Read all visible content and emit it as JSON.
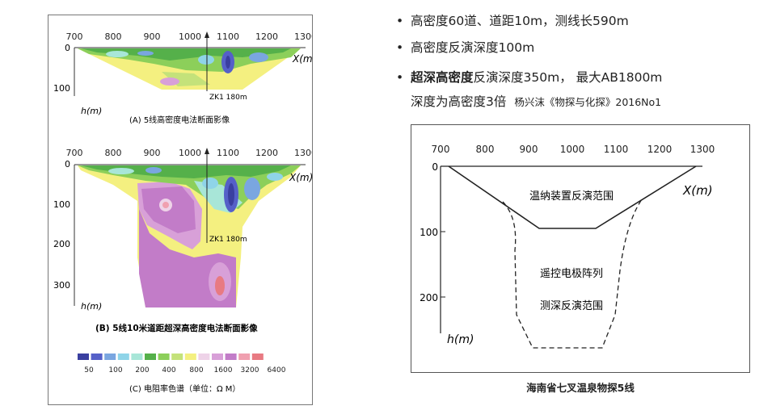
{
  "bullets": {
    "line1": "高密度60道、道距10m，测线长590m",
    "line2": "高密度反演深度100m",
    "line3_bold": "超深高密度",
    "line3_rest": "反演深度350m，  最大AB1800m",
    "line4": "深度为高密度3倍",
    "line4_ref": "杨兴沫《物探与化探》2016No1"
  },
  "panel_a": {
    "x_ticks": [
      "700",
      "800",
      "900",
      "1000",
      "1100",
      "1200",
      "1300"
    ],
    "y_ticks": [
      "0",
      "100"
    ],
    "x_axis_label": "X(m)",
    "y_axis_label": "h(m)",
    "borehole_label": "ZK1  180m",
    "caption": "(A)  5线高密度电法断面影像"
  },
  "panel_b": {
    "x_ticks": [
      "700",
      "800",
      "900",
      "1000",
      "1100",
      "1200",
      "1300"
    ],
    "y_ticks": [
      "0",
      "100",
      "200",
      "300"
    ],
    "x_axis_label": "X(m)",
    "y_axis_label": "h(m)",
    "borehole_label": "ZK1  180m",
    "caption": "(B)  5线10米道距超深高密度电法断面影像"
  },
  "legend": {
    "colors": [
      "#3a3fa0",
      "#5560c8",
      "#7aa6e0",
      "#8fd4e8",
      "#a8e6d8",
      "#55b04a",
      "#8ccf5a",
      "#c4e27a",
      "#f4f080",
      "#eed3e8",
      "#d8a0d8",
      "#c27cc8",
      "#f0a0b0",
      "#e87a82"
    ],
    "labels": [
      "50",
      "100",
      "200",
      "400",
      "800",
      "1600",
      "3200",
      "6400"
    ],
    "caption": "(C)  电阻率色谱（单位：Ω M）"
  },
  "diagram": {
    "x_ticks": [
      "700",
      "800",
      "900",
      "1000",
      "1100",
      "1200",
      "1300"
    ],
    "y_ticks": [
      "0",
      "100",
      "200"
    ],
    "x_axis_label": "X(m)",
    "y_axis_label": "h(m)",
    "wenner_label": "温纳装置反演范围",
    "remote_label_1": "遥控电极阵列",
    "remote_label_2": "测深反演范围",
    "caption": "海南省七叉温泉物探5线"
  }
}
